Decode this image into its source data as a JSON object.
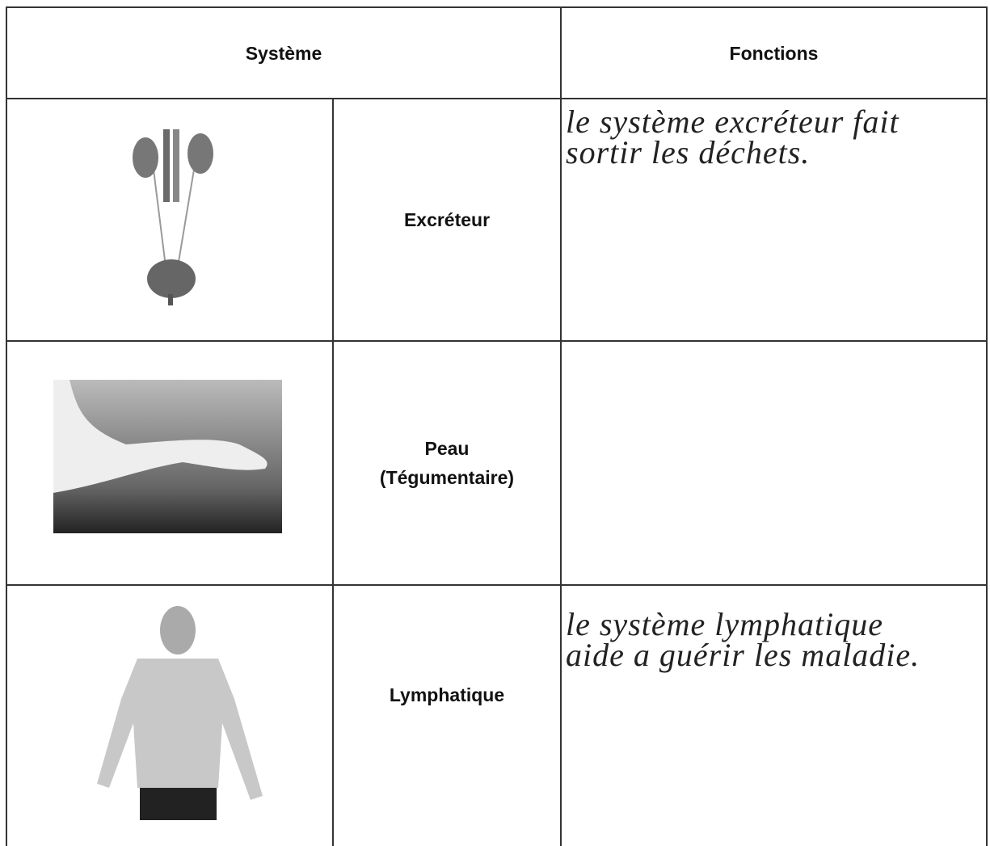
{
  "table": {
    "header": [
      "Système",
      "Fonctions"
    ],
    "rows": [
      {
        "system": [
          "Excréteur"
        ],
        "function": [
          "le système excréteur fait",
          "sortir les déchets."
        ]
      },
      {
        "system": [
          "Peau",
          "(Tégumentaire)"
        ]
      },
      {
        "system": [
          "Lymphatique"
        ],
        "function": [
          "le système lymphatique",
          "aide a guérir les maladie."
        ]
      }
    ]
  }
}
